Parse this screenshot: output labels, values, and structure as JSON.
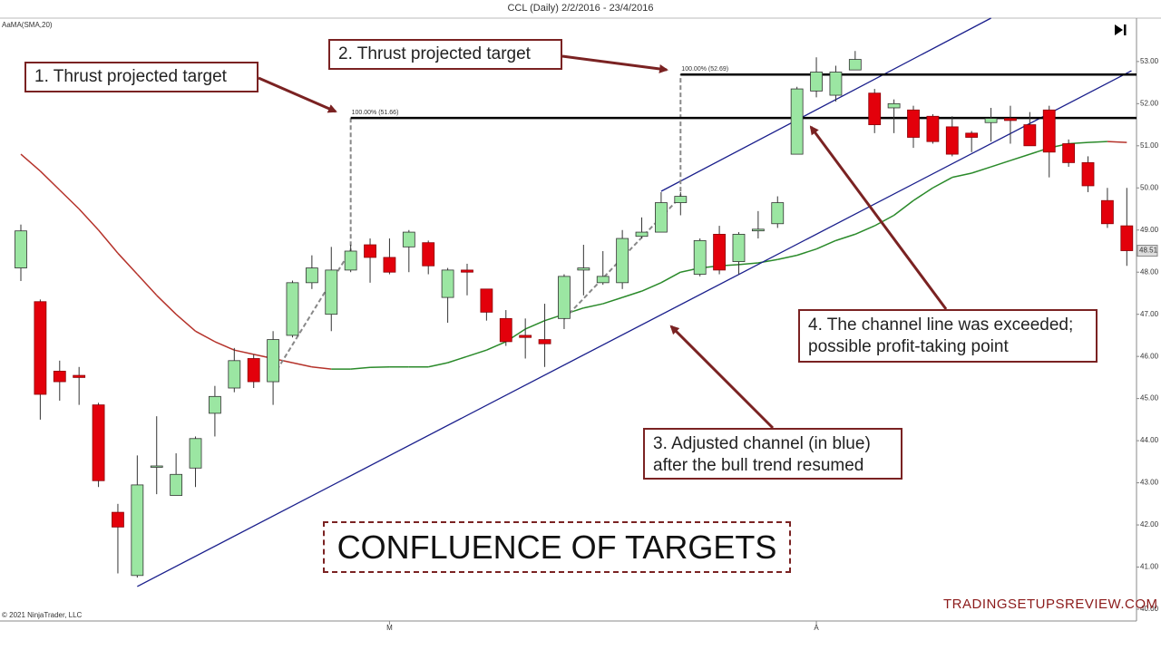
{
  "chart_data": {
    "type": "candlestick",
    "title": "CCL (Daily)  2/2/2016 - 23/4/2016",
    "indicator_label": "AaMA(SMA,20)",
    "copyright": "© 2021 NinjaTrader, LLC",
    "watermark": "TRADINGSETUPSREVIEW.COM",
    "headline": "CONFLUENCE OF TARGETS",
    "annotations": [
      "1. Thrust projected target",
      "2. Thrust projected target",
      "3. Adjusted channel (in blue)\nafter the bull trend resumed",
      "4. The channel line was exceeded;\npossible profit-taking point"
    ],
    "categories": [
      null,
      null,
      null,
      null,
      null,
      null,
      null,
      null,
      null,
      null,
      null,
      null,
      null,
      null,
      null,
      null,
      null,
      null,
      null,
      "M",
      null,
      null,
      null,
      null,
      null,
      null,
      null,
      null,
      null,
      null,
      null,
      null,
      null,
      null,
      null,
      null,
      null,
      null,
      null,
      null,
      null,
      "A",
      null,
      null,
      null,
      null,
      null,
      null,
      null,
      null,
      null,
      null,
      null,
      null,
      null,
      null,
      null,
      null
    ],
    "open": [
      48.1,
      47.3,
      45.65,
      45.55,
      44.85,
      42.3,
      40.8,
      43.4,
      42.7,
      43.35,
      44.65,
      45.25,
      45.95,
      45.4,
      46.5,
      47.75,
      47.0,
      48.05,
      48.65,
      48.35,
      48.6,
      48.7,
      47.4,
      48.05,
      47.6,
      46.9,
      46.5,
      46.4,
      46.9,
      48.05,
      47.75,
      47.75,
      48.85,
      48.95,
      49.65,
      47.95,
      48.9,
      48.25,
      48.98,
      49.15,
      50.8,
      52.3,
      52.2,
      52.8,
      52.25,
      51.9,
      51.85,
      51.7,
      51.45,
      51.3,
      51.55,
      51.65,
      51.5,
      51.85,
      51.05,
      50.6,
      49.7,
      49.1
    ],
    "high": [
      49.13,
      47.35,
      45.9,
      45.75,
      44.9,
      42.5,
      43.65,
      44.58,
      43.7,
      44.1,
      45.3,
      46.2,
      46.05,
      46.6,
      47.8,
      48.4,
      48.6,
      48.65,
      48.8,
      48.8,
      49.0,
      48.75,
      48.1,
      48.2,
      47.6,
      47.1,
      46.9,
      47.25,
      47.95,
      48.65,
      48.5,
      49.0,
      49.3,
      49.9,
      49.9,
      48.8,
      49.1,
      48.95,
      49.45,
      49.8,
      52.4,
      53.1,
      52.9,
      53.25,
      52.35,
      52.1,
      51.95,
      51.75,
      51.7,
      51.35,
      51.9,
      51.95,
      51.8,
      51.95,
      51.15,
      50.75,
      50.0,
      50.0
    ],
    "low": [
      47.79,
      44.5,
      44.95,
      44.85,
      42.9,
      40.85,
      40.75,
      42.73,
      42.7,
      42.9,
      44.1,
      45.15,
      45.25,
      44.85,
      46.45,
      47.6,
      46.6,
      48.0,
      47.75,
      47.95,
      48.0,
      47.95,
      46.8,
      47.45,
      46.85,
      46.25,
      45.95,
      45.75,
      46.65,
      47.45,
      47.7,
      47.6,
      48.8,
      48.95,
      49.35,
      47.9,
      47.95,
      47.95,
      48.8,
      49.05,
      50.8,
      52.15,
      52.05,
      52.8,
      51.3,
      51.3,
      50.95,
      51.05,
      50.75,
      50.85,
      51.1,
      51.05,
      51.0,
      50.25,
      50.5,
      49.9,
      49.05,
      48.15
    ],
    "close": [
      48.98,
      45.1,
      45.4,
      45.5,
      43.05,
      41.95,
      42.95,
      43.4,
      43.2,
      44.05,
      45.05,
      45.9,
      45.4,
      46.4,
      47.75,
      48.1,
      48.05,
      48.5,
      48.35,
      48.0,
      48.95,
      48.15,
      48.05,
      48.0,
      47.05,
      46.35,
      46.45,
      46.3,
      47.9,
      48.1,
      47.9,
      48.8,
      48.95,
      49.65,
      49.8,
      48.75,
      48.05,
      48.9,
      49.02,
      49.65,
      52.35,
      52.75,
      52.75,
      53.05,
      51.5,
      52.0,
      51.2,
      51.1,
      50.8,
      51.2,
      51.65,
      51.6,
      51.0,
      50.85,
      50.6,
      50.05,
      49.15,
      48.51
    ],
    "up_color": "#9be6a2",
    "down_color": "#e3000b",
    "sma": {
      "values": [
        50.8,
        50.4,
        49.95,
        49.5,
        49.0,
        48.45,
        47.95,
        47.45,
        47.0,
        46.6,
        46.35,
        46.15,
        46.05,
        45.95,
        45.85,
        45.75,
        45.7,
        45.7,
        45.74,
        45.75,
        45.75,
        45.75,
        45.85,
        46.0,
        46.15,
        46.35,
        46.65,
        46.85,
        47.0,
        47.15,
        47.25,
        47.4,
        47.55,
        47.75,
        48.0,
        48.1,
        48.15,
        48.18,
        48.22,
        48.3,
        48.4,
        48.55,
        48.75,
        48.9,
        49.1,
        49.35,
        49.7,
        50.0,
        50.25,
        50.35,
        50.5,
        50.65,
        50.8,
        50.95,
        51.05,
        51.08,
        51.1,
        51.08
      ],
      "rising_color": "#2a8a2a",
      "falling_color": "#b5322a"
    },
    "channels": [
      {
        "x": [
          6,
          57.24
        ],
        "values": [
          40.54,
          52.78
        ],
        "color": "#1a1f8c"
      },
      {
        "x": [
          33,
          50.0
        ],
        "values": [
          49.92,
          54.03
        ],
        "color": "#1a1f8c"
      }
    ],
    "targets": [
      {
        "x": 17,
        "value": 51.66,
        "label": "100.00% (51.66)"
      },
      {
        "x": 34,
        "value": 52.69,
        "label": "100.00% (52.69)"
      }
    ],
    "thrust_lines": [
      {
        "x": [
          13,
          17,
          17
        ],
        "values": [
          45.53,
          48.52,
          51.66
        ]
      },
      {
        "x": [
          28,
          34,
          34
        ],
        "values": [
          46.89,
          49.79,
          52.69
        ]
      }
    ],
    "last_price": 48.51,
    "ylim": [
      39.72,
      54.03
    ],
    "yticks": [
      {
        "value": 40,
        "label": "40.00"
      },
      {
        "value": 41,
        "label": "41.00"
      },
      {
        "value": 42,
        "label": "42.00"
      },
      {
        "value": 43,
        "label": "43.00"
      },
      {
        "value": 44,
        "label": "44.00"
      },
      {
        "value": 45,
        "label": "45.00"
      },
      {
        "value": 46,
        "label": "46.00"
      },
      {
        "value": 47,
        "label": "47.00"
      },
      {
        "value": 48,
        "label": "48.00"
      },
      {
        "value": 49,
        "label": "49.00"
      },
      {
        "value": 50,
        "label": "50.00"
      },
      {
        "value": 51,
        "label": "51.00"
      },
      {
        "value": 52,
        "label": "52.00"
      },
      {
        "value": 53,
        "label": "53.00"
      }
    ],
    "grid": false
  }
}
